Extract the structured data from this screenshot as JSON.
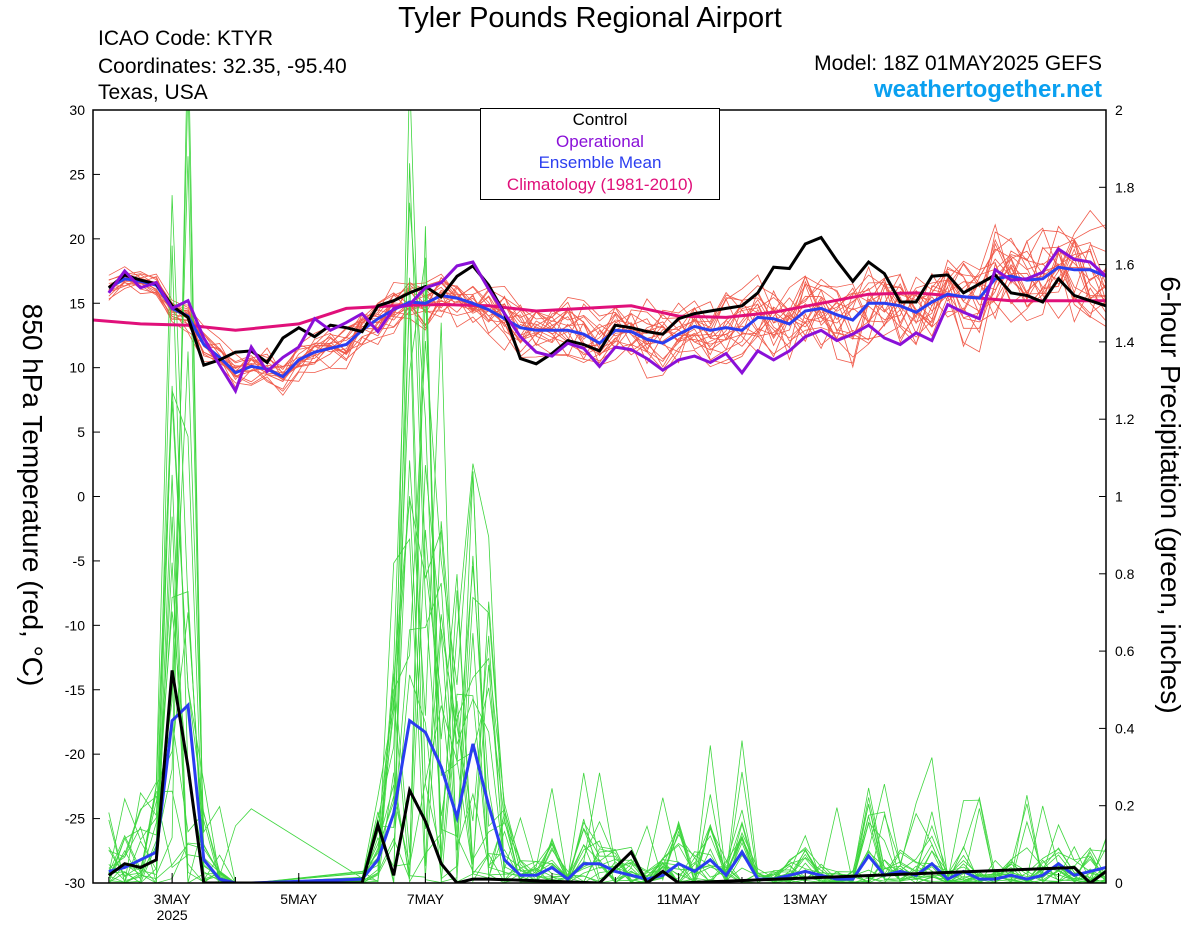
{
  "header": {
    "title": "Tyler Pounds Regional Airport",
    "icao": "ICAO Code: KTYR",
    "coordinates": "Coordinates: 32.35, -95.40",
    "location": "Texas, USA",
    "model": "Model: 18Z 01MAY2025 GEFS",
    "site": "weathertogether.net"
  },
  "legend": {
    "control": "Control",
    "operational": "Operational",
    "mean": "Ensemble Mean",
    "climo": "Climatology (1981-2010)"
  },
  "colors": {
    "control": "#000000",
    "operational": "#8a10d8",
    "mean": "#2a3df0",
    "climo": "#e0107a",
    "members_temp": "#f05a4a",
    "members_precip": "#3fd63f",
    "site": "#0aa0f0"
  },
  "chart_data": {
    "type": "line",
    "title": "Tyler Pounds Regional Airport",
    "ylabel_left": "850 hPa Temperature (red, °C)",
    "ylabel_right": "6-hour Precipitation (green, inches)",
    "xlabel": "",
    "x_ticks": [
      {
        "day": 3,
        "label": "3MAY",
        "sub": "2025"
      },
      {
        "day": 5,
        "label": "5MAY",
        "sub": ""
      },
      {
        "day": 7,
        "label": "7MAY",
        "sub": ""
      },
      {
        "day": 9,
        "label": "9MAY",
        "sub": ""
      },
      {
        "day": 11,
        "label": "11MAY",
        "sub": ""
      },
      {
        "day": 13,
        "label": "13MAY",
        "sub": ""
      },
      {
        "day": 15,
        "label": "15MAY",
        "sub": ""
      },
      {
        "day": 17,
        "label": "17MAY",
        "sub": ""
      }
    ],
    "xlim": [
      1.75,
      17.75
    ],
    "ylim_left": [
      -30,
      30
    ],
    "yticks_left": [
      30,
      25,
      20,
      15,
      10,
      5,
      0,
      -5,
      -10,
      -15,
      -20,
      -25,
      -30
    ],
    "ylim_right": [
      0,
      2
    ],
    "yticks_right": [
      "2",
      "1.8",
      "1.6",
      "1.4",
      "1.2",
      "1",
      "0.8",
      "0.6",
      "0.4",
      "0.2",
      "0"
    ],
    "series": [
      {
        "name": "Control",
        "axis": "left",
        "x": [
          2.0,
          2.25,
          2.5,
          2.75,
          3.0,
          3.25,
          3.5,
          3.75,
          4.0,
          4.25,
          4.5,
          4.75,
          5.0,
          5.25,
          5.5,
          5.75,
          6.0,
          6.25,
          6.5,
          6.75,
          7.0,
          7.25,
          7.5,
          7.75,
          8.0,
          8.25,
          8.5,
          8.75,
          9.0,
          9.25,
          9.5,
          9.75,
          10.0,
          10.25,
          10.5,
          10.75,
          11.0,
          11.25,
          11.5,
          11.75,
          12.0,
          12.25,
          12.5,
          12.75,
          13.0,
          13.25,
          13.5,
          13.75,
          14.0,
          14.25,
          14.5,
          14.75,
          15.0,
          15.25,
          15.5,
          15.75,
          16.0,
          16.25,
          16.5,
          16.75,
          17.0,
          17.25,
          17.5,
          17.75
        ],
        "values": [
          16.2,
          17.2,
          16.8,
          16.5,
          14.8,
          13.9,
          10.2,
          10.6,
          11.2,
          11.3,
          10.4,
          12.3,
          13.1,
          12.4,
          13.3,
          13.1,
          12.8,
          14.8,
          15.2,
          15.8,
          16.3,
          15.5,
          17.1,
          17.9,
          16.4,
          14.2,
          10.7,
          10.3,
          11.1,
          12.1,
          11.8,
          11.3,
          13.3,
          13.1,
          12.8,
          12.6,
          13.8,
          14.2,
          14.4,
          14.6,
          14.8,
          15.8,
          17.8,
          17.7,
          19.6,
          20.1,
          18.3,
          16.7,
          18.2,
          17.3,
          15.1,
          15.1,
          17.1,
          17.2,
          15.8,
          16.5,
          17.2,
          15.8,
          15.6,
          15.1,
          16.9,
          15.6,
          15.2,
          14.8
        ]
      },
      {
        "name": "Operational",
        "axis": "left",
        "x": [
          2.0,
          2.25,
          2.5,
          2.75,
          3.0,
          3.25,
          3.5,
          3.75,
          4.0,
          4.25,
          4.5,
          4.75,
          5.0,
          5.25,
          5.5,
          5.75,
          6.0,
          6.25,
          6.5,
          6.75,
          7.0,
          7.25,
          7.5,
          7.75,
          8.0,
          8.25,
          8.5,
          8.75,
          9.0,
          9.25,
          9.5,
          9.75,
          10.0,
          10.25,
          10.5,
          10.75,
          11.0,
          11.25,
          11.5,
          11.75,
          12.0,
          12.25,
          12.5,
          12.75,
          13.0,
          13.25,
          13.5,
          13.75,
          14.0,
          14.25,
          14.5,
          14.75,
          15.0,
          15.25,
          15.5,
          15.75,
          16.0,
          16.25,
          16.5,
          16.75,
          17.0,
          17.25,
          17.5,
          17.75
        ],
        "values": [
          15.8,
          17.5,
          16.2,
          16.6,
          14.6,
          15.2,
          12.3,
          10.2,
          8.2,
          11.6,
          9.7,
          10.8,
          11.6,
          13.8,
          12.9,
          13.5,
          14.2,
          12.8,
          14.6,
          14.9,
          16.2,
          16.6,
          17.9,
          18.2,
          16.1,
          14.2,
          12.4,
          11.2,
          10.9,
          11.9,
          11.5,
          10.1,
          11.6,
          11.4,
          10.7,
          9.8,
          10.6,
          10.9,
          10.4,
          11.1,
          9.6,
          11.3,
          10.6,
          11.3,
          12.4,
          12.9,
          12.1,
          12.6,
          13.3,
          12.3,
          11.8,
          12.7,
          12.1,
          14.9,
          14.3,
          13.8,
          17.6,
          16.8,
          16.9,
          17.4,
          19.2,
          18.4,
          18.2,
          17.1
        ]
      },
      {
        "name": "Ensemble Mean",
        "axis": "left",
        "x": [
          2.0,
          2.25,
          2.5,
          2.75,
          3.0,
          3.25,
          3.5,
          3.75,
          4.0,
          4.25,
          4.5,
          4.75,
          5.0,
          5.25,
          5.5,
          5.75,
          6.0,
          6.25,
          6.5,
          6.75,
          7.0,
          7.25,
          7.5,
          7.75,
          8.0,
          8.25,
          8.5,
          8.75,
          9.0,
          9.25,
          9.5,
          9.75,
          10.0,
          10.25,
          10.5,
          10.75,
          11.0,
          11.25,
          11.5,
          11.75,
          12.0,
          12.25,
          12.5,
          12.75,
          13.0,
          13.25,
          13.5,
          13.75,
          14.0,
          14.25,
          14.5,
          14.75,
          15.0,
          15.25,
          15.5,
          15.75,
          16.0,
          16.25,
          16.5,
          16.75,
          17.0,
          17.25,
          17.5,
          17.75
        ],
        "values": [
          16.2,
          16.9,
          16.7,
          16.4,
          14.6,
          14.0,
          11.8,
          10.8,
          9.6,
          10.1,
          9.9,
          9.3,
          10.6,
          11.2,
          11.5,
          11.8,
          12.9,
          13.8,
          14.5,
          15.1,
          15.0,
          15.6,
          15.4,
          15.0,
          14.5,
          13.8,
          13.1,
          12.9,
          12.9,
          12.9,
          12.6,
          11.9,
          12.9,
          12.8,
          12.2,
          11.9,
          12.6,
          13.2,
          12.9,
          13.1,
          12.9,
          13.9,
          13.8,
          13.4,
          14.4,
          14.6,
          14.1,
          13.7,
          15.0,
          15.0,
          14.8,
          14.3,
          15.1,
          15.7,
          15.5,
          15.4,
          16.9,
          17.1,
          16.8,
          16.9,
          17.8,
          17.6,
          17.6,
          17.1
        ]
      },
      {
        "name": "Climatology (1981-2010)",
        "axis": "left",
        "x": [
          1.75,
          2.5,
          3.25,
          4.0,
          5.0,
          5.75,
          6.5,
          7.25,
          8.0,
          8.75,
          9.5,
          10.25,
          11.0,
          11.75,
          12.5,
          13.25,
          14.0,
          14.75,
          15.5,
          16.25,
          17.0,
          17.75
        ],
        "values": [
          13.7,
          13.4,
          13.3,
          12.9,
          13.4,
          14.6,
          14.8,
          14.9,
          14.8,
          14.4,
          14.6,
          14.8,
          14.0,
          13.9,
          14.3,
          15.0,
          15.7,
          15.8,
          15.5,
          15.2,
          15.2,
          15.2
        ]
      },
      {
        "name": "Control precip",
        "axis": "right",
        "x": [
          2.0,
          2.25,
          2.5,
          2.75,
          3.0,
          3.25,
          3.5,
          3.75,
          4.0,
          6.0,
          6.25,
          6.5,
          6.75,
          7.0,
          7.25,
          7.5,
          7.75,
          8.0,
          9.75,
          10.25,
          10.5,
          10.75,
          11.0,
          17.25,
          17.5,
          17.75
        ],
        "values": [
          0.02,
          0.05,
          0.04,
          0.06,
          0.55,
          0.3,
          0.0,
          0.0,
          0.0,
          0.0,
          0.15,
          0.02,
          0.24,
          0.16,
          0.05,
          0.0,
          0.01,
          0.01,
          0.0,
          0.08,
          0.0,
          0.03,
          0.0,
          0.04,
          0.0,
          0.03
        ]
      },
      {
        "name": "Ensemble mean precip",
        "axis": "right",
        "x": [
          2.0,
          2.25,
          2.5,
          2.75,
          3.0,
          3.25,
          3.5,
          3.75,
          4.0,
          4.25,
          6.0,
          6.25,
          6.5,
          6.75,
          7.0,
          7.25,
          7.5,
          7.75,
          8.0,
          8.25,
          8.5,
          8.75,
          9.0,
          9.25,
          9.5,
          9.75,
          10.0,
          10.25,
          10.5,
          10.75,
          11.0,
          11.25,
          11.5,
          11.75,
          12.0,
          12.25,
          12.5,
          12.75,
          13.0,
          13.25,
          13.5,
          13.75,
          14.0,
          14.25,
          14.5,
          14.75,
          15.0,
          15.25,
          15.5,
          15.75,
          16.0,
          16.25,
          16.5,
          16.75,
          17.0,
          17.25,
          17.5,
          17.75
        ],
        "values": [
          0.03,
          0.04,
          0.06,
          0.08,
          0.42,
          0.46,
          0.06,
          0.01,
          0.0,
          0.0,
          0.01,
          0.06,
          0.18,
          0.42,
          0.39,
          0.3,
          0.17,
          0.36,
          0.2,
          0.06,
          0.02,
          0.02,
          0.04,
          0.01,
          0.05,
          0.05,
          0.03,
          0.02,
          0.01,
          0.02,
          0.05,
          0.03,
          0.06,
          0.02,
          0.08,
          0.01,
          0.01,
          0.02,
          0.03,
          0.02,
          0.01,
          0.01,
          0.07,
          0.02,
          0.03,
          0.02,
          0.05,
          0.01,
          0.03,
          0.01,
          0.01,
          0.02,
          0.01,
          0.02,
          0.05,
          0.02,
          0.03,
          0.04
        ]
      }
    ]
  }
}
